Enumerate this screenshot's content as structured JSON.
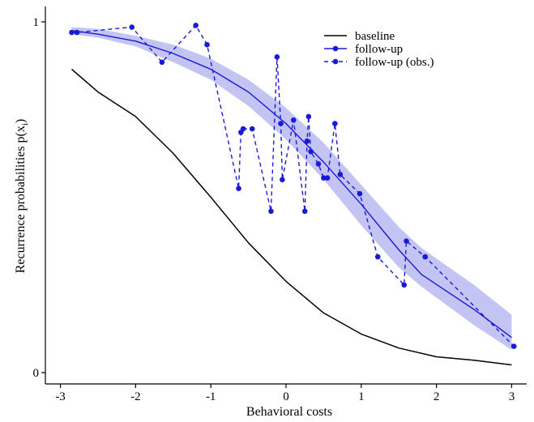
{
  "chart_data": {
    "type": "line",
    "xlabel": "Behavioral costs",
    "ylabel": "Recurrence probabilities p(x",
    "ylabel_subscript": "i",
    "ylabel_suffix": ")",
    "xlim": [
      -3.2,
      3.2
    ],
    "ylim": [
      0,
      1
    ],
    "x_ticks": [
      -3,
      -2,
      -1,
      0,
      1,
      2,
      3
    ],
    "x_tick_labels": [
      "-3",
      "-2",
      "-1",
      "0",
      "1",
      "2",
      "3"
    ],
    "y_ticks": [
      0,
      1
    ],
    "y_tick_labels": [
      "0",
      "1"
    ],
    "grid": false,
    "legend_position": "top-right",
    "colors": {
      "baseline": "#000000",
      "follow_up": "#1a1ad6",
      "band": "#b9b9f2"
    },
    "series": [
      {
        "name": "baseline",
        "style": "solid",
        "markers": false,
        "x": [
          -2.85,
          -2.5,
          -2.0,
          -1.5,
          -1.0,
          -0.5,
          0.0,
          0.5,
          1.0,
          1.5,
          2.0,
          2.5,
          3.0
        ],
        "y": [
          0.865,
          0.8,
          0.73,
          0.625,
          0.5,
          0.37,
          0.26,
          0.17,
          0.11,
          0.07,
          0.045,
          0.035,
          0.022
        ]
      },
      {
        "name": "follow-up",
        "style": "solid",
        "markers": true,
        "x": [
          -2.85,
          -2.5,
          -2.0,
          -1.5,
          -1.0,
          -0.5,
          0.0,
          0.5,
          1.0,
          1.5,
          1.8,
          2.5,
          3.0
        ],
        "y": [
          0.975,
          0.965,
          0.945,
          0.91,
          0.865,
          0.8,
          0.71,
          0.6,
          0.48,
          0.35,
          0.28,
          0.18,
          0.1
        ],
        "band_lower": [
          0.965,
          0.955,
          0.93,
          0.885,
          0.835,
          0.76,
          0.665,
          0.55,
          0.42,
          0.3,
          0.245,
          0.135,
          0.065
        ],
        "band_upper": [
          0.985,
          0.98,
          0.96,
          0.935,
          0.895,
          0.835,
          0.755,
          0.655,
          0.535,
          0.415,
          0.355,
          0.25,
          0.165
        ]
      },
      {
        "name": "follow-up (obs.)",
        "style": "dashed",
        "markers": true,
        "x": [
          -2.85,
          -2.78,
          -2.05,
          -1.65,
          -1.2,
          -1.05,
          -0.63,
          -0.6,
          -0.57,
          -0.45,
          -0.2,
          -0.12,
          -0.07,
          -0.05,
          0.1,
          0.25,
          0.28,
          0.3,
          0.33,
          0.43,
          0.5,
          0.55,
          0.65,
          0.72,
          0.98,
          1.22,
          1.57,
          1.6,
          1.85,
          3.03
        ],
        "y": [
          0.97,
          0.97,
          0.985,
          0.885,
          0.99,
          0.935,
          0.525,
          0.685,
          0.695,
          0.695,
          0.46,
          0.9,
          0.71,
          0.55,
          0.72,
          0.46,
          0.66,
          0.73,
          0.63,
          0.595,
          0.555,
          0.555,
          0.71,
          0.565,
          0.51,
          0.33,
          0.25,
          0.375,
          0.33,
          0.075
        ]
      }
    ]
  }
}
